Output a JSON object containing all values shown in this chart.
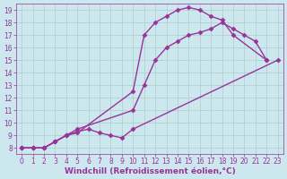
{
  "bg_color": "#cce8ee",
  "grid_color": "#aacccc",
  "line_color": "#993399",
  "marker": "D",
  "markersize": 2.5,
  "linewidth": 1.0,
  "xlabel": "Windchill (Refroidissement éolien,°C)",
  "xlabel_fontsize": 6.5,
  "xlim": [
    -0.5,
    23.5
  ],
  "ylim": [
    7.5,
    19.5
  ],
  "xticks": [
    0,
    1,
    2,
    3,
    4,
    5,
    6,
    7,
    8,
    9,
    10,
    11,
    12,
    13,
    14,
    15,
    16,
    17,
    18,
    19,
    20,
    21,
    22,
    23
  ],
  "yticks": [
    8,
    9,
    10,
    11,
    12,
    13,
    14,
    15,
    16,
    17,
    18,
    19
  ],
  "tick_fontsize": 5.5,
  "lines": [
    {
      "x": [
        0,
        1,
        2,
        3,
        4,
        5,
        10,
        11,
        12,
        13,
        14,
        15,
        16,
        17,
        18,
        19,
        22
      ],
      "y": [
        8,
        8,
        8,
        8.5,
        9,
        9.2,
        12.5,
        17,
        18,
        18.5,
        19,
        19.2,
        19,
        18.5,
        18.2,
        17,
        15
      ]
    },
    {
      "x": [
        0,
        1,
        2,
        3,
        4,
        5,
        10,
        11,
        12,
        13,
        14,
        15,
        16,
        17,
        18,
        19,
        20,
        21,
        22
      ],
      "y": [
        8,
        8,
        8,
        8.5,
        9,
        9.5,
        11,
        13,
        15,
        16,
        16.5,
        17,
        17.2,
        17.5,
        18,
        17.5,
        17,
        16.5,
        15
      ]
    },
    {
      "x": [
        0,
        1,
        2,
        3,
        4,
        5,
        6,
        7,
        8,
        9,
        10,
        23
      ],
      "y": [
        8,
        8,
        8,
        8.5,
        9,
        9.3,
        9.5,
        9.2,
        9.0,
        8.8,
        9.5,
        15
      ]
    }
  ]
}
